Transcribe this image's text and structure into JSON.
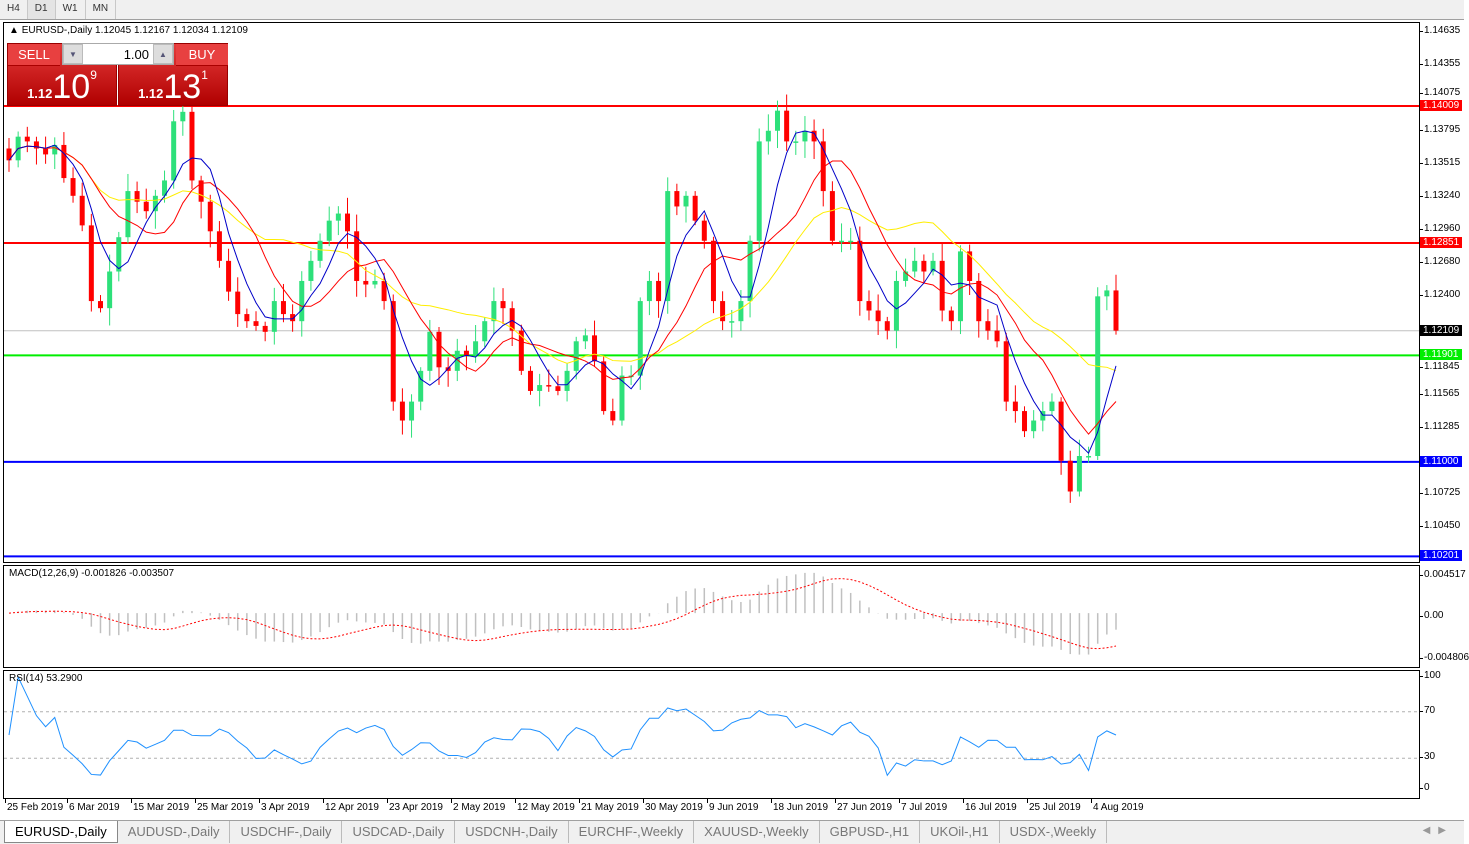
{
  "timeframes": [
    "H4",
    "D1",
    "W1",
    "MN"
  ],
  "active_timeframe": "D1",
  "chart": {
    "symbol_line": "EURUSD-,Daily  1.12045 1.12167 1.12034 1.12109"
  },
  "trade": {
    "sell_label": "SELL",
    "buy_label": "BUY",
    "lot": "1.00",
    "sell_price": {
      "small": "1.12",
      "large": "10",
      "sup": "9"
    },
    "buy_price": {
      "small": "1.12",
      "large": "13",
      "sup": "1"
    }
  },
  "colors": {
    "bull": "#2de07a",
    "bear": "#ff0000",
    "ma_fast": "#0000c8",
    "ma_mid": "#ff0000",
    "ma_slow": "#ffee00",
    "rsi": "#1e90ff",
    "macd_hist": "#c0c0c0",
    "macd_signal": "#ff0000"
  },
  "price_axis": [
    "1.14635",
    "1.14355",
    "1.14075",
    "1.13795",
    "1.13515",
    "1.13240",
    "1.12960",
    "1.12680",
    "1.12400",
    "1.11845",
    "1.11565",
    "1.11285",
    "1.10725",
    "1.10450"
  ],
  "hlines": [
    {
      "price": "1.14009",
      "color": "#ff0000"
    },
    {
      "price": "1.12851",
      "color": "#ff0000"
    },
    {
      "price": "1.11901",
      "color": "#00ee00"
    },
    {
      "price": "1.11000",
      "color": "#0000ff"
    },
    {
      "price": "1.10201",
      "color": "#0000ff"
    }
  ],
  "current_price": {
    "price": "1.12109",
    "color": "#000000"
  },
  "macd": {
    "label": "MACD(12,26,9) -0.001826 -0.003507",
    "axis": [
      "0.004517",
      "0.00",
      "-0.004806"
    ]
  },
  "rsi": {
    "label": "RSI(14) 53.2900",
    "axis": [
      "100",
      "70",
      "30",
      "0"
    ],
    "levels": [
      70,
      30
    ]
  },
  "dates": [
    "25 Feb 2019",
    "6 Mar 2019",
    "15 Mar 2019",
    "25 Mar 2019",
    "3 Apr 2019",
    "12 Apr 2019",
    "23 Apr 2019",
    "2 May 2019",
    "12 May 2019",
    "21 May 2019",
    "30 May 2019",
    "9 Jun 2019",
    "18 Jun 2019",
    "27 Jun 2019",
    "7 Jul 2019",
    "16 Jul 2019",
    "25 Jul 2019",
    "4 Aug 2019"
  ],
  "tabs": [
    "EURUSD-,Daily",
    "AUDUSD-,Daily",
    "USDCHF-,Daily",
    "USDCAD-,Daily",
    "USDCNH-,Daily",
    "EURCHF-,Weekly",
    "XAUUSD-,Weekly",
    "GBPUSD-,H1",
    "UKOil-,H1",
    "USDX-,Weekly"
  ],
  "chart_data": {
    "type": "candlestick",
    "closes": [
      1.1355,
      1.1375,
      1.1371,
      1.1365,
      1.136,
      1.1368,
      1.134,
      1.1325,
      1.13,
      1.1236,
      1.123,
      1.1261,
      1.129,
      1.1329,
      1.132,
      1.1312,
      1.1325,
      1.1338,
      1.1388,
      1.1396,
      1.1338,
      1.132,
      1.1295,
      1.127,
      1.1244,
      1.1225,
      1.1219,
      1.1215,
      1.121,
      1.1236,
      1.1225,
      1.1219,
      1.1253,
      1.127,
      1.1287,
      1.1304,
      1.131,
      1.1295,
      1.1253,
      1.125,
      1.1253,
      1.1236,
      1.1151,
      1.1135,
      1.1151,
      1.1177,
      1.121,
      1.118,
      1.1177,
      1.1194,
      1.119,
      1.1202,
      1.1219,
      1.1236,
      1.123,
      1.1211,
      1.1177,
      1.116,
      1.1165,
      1.1164,
      1.116,
      1.1177,
      1.1202,
      1.1207,
      1.1185,
      1.1143,
      1.1135,
      1.1173,
      1.1173,
      1.1236,
      1.1253,
      1.1236,
      1.1329,
      1.1316,
      1.1325,
      1.1304,
      1.1287,
      1.1236,
      1.1219,
      1.1219,
      1.1236,
      1.1287,
      1.1371,
      1.138,
      1.1397,
      1.1371,
      1.1371,
      1.138,
      1.1371,
      1.1329,
      1.1287,
      1.1287,
      1.1287,
      1.1236,
      1.1228,
      1.1219,
      1.1211,
      1.1253,
      1.1261,
      1.127,
      1.1261,
      1.127,
      1.1228,
      1.1219,
      1.1278,
      1.1253,
      1.1219,
      1.1211,
      1.1202,
      1.1151,
      1.1143,
      1.1126,
      1.1135,
      1.1143,
      1.1151,
      1.1101,
      1.1075,
      1.1105,
      1.1105,
      1.124,
      1.1245,
      1.1211
    ]
  }
}
